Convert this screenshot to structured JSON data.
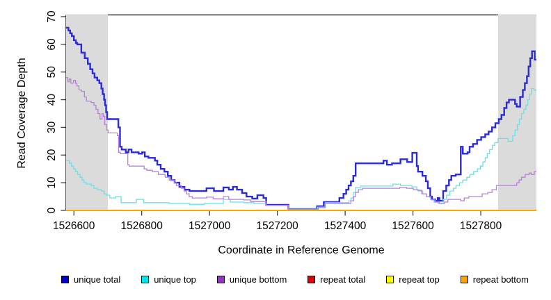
{
  "figure": {
    "x_axis_label": "Coordinate in Reference Genome",
    "y_axis_label": "Read Coverage Depth"
  },
  "chart_data": {
    "type": "line",
    "subtype": "step-coverage-plot",
    "title": "",
    "xlabel": "Coordinate in Reference Genome",
    "ylabel": "Read Coverage Depth",
    "xlim": [
      1526577,
      1527964
    ],
    "ylim": [
      0,
      70.5
    ],
    "x_ticks": [
      1526600,
      1526800,
      1527000,
      1527200,
      1527400,
      1527600,
      1527800
    ],
    "y_ticks": [
      0,
      10,
      20,
      30,
      40,
      50,
      60,
      70
    ],
    "grid": false,
    "legend_position": "bottom",
    "frame_color": "#000000",
    "tick_color": "#404040",
    "background_color": "#ffffff",
    "highlight_regions": [
      {
        "name": "left-repeat-shade",
        "from": 1526577,
        "to": 1526700,
        "color": "#DBDBDB"
      },
      {
        "name": "right-repeat-shade",
        "from": 1527851,
        "to": 1527964,
        "color": "#DBDBDB"
      }
    ],
    "series": [
      {
        "name": "unique total",
        "legend_color": "#0000CD",
        "line_color": "#2B2BD5",
        "line_width": 2.4,
        "points": [
          [
            1526577,
            66
          ],
          [
            1526584,
            65
          ],
          [
            1526589,
            64
          ],
          [
            1526594,
            63
          ],
          [
            1526600,
            61.5
          ],
          [
            1526606,
            60.5
          ],
          [
            1526610,
            60
          ],
          [
            1526622,
            57
          ],
          [
            1526632,
            55
          ],
          [
            1526641,
            53
          ],
          [
            1526648,
            51
          ],
          [
            1526655,
            49.5
          ],
          [
            1526661,
            48
          ],
          [
            1526669,
            47
          ],
          [
            1526675,
            46
          ],
          [
            1526681,
            44
          ],
          [
            1526685,
            42
          ],
          [
            1526689,
            40
          ],
          [
            1526692,
            38
          ],
          [
            1526695,
            35.5
          ],
          [
            1526698,
            33
          ],
          [
            1526731,
            30
          ],
          [
            1526736,
            23
          ],
          [
            1526741,
            22
          ],
          [
            1526753,
            21
          ],
          [
            1526761,
            22
          ],
          [
            1526770,
            21
          ],
          [
            1526791,
            20.5
          ],
          [
            1526801,
            21
          ],
          [
            1526809,
            19.5
          ],
          [
            1526820,
            19
          ],
          [
            1526839,
            18
          ],
          [
            1526846,
            16.5
          ],
          [
            1526856,
            15
          ],
          [
            1526867,
            14
          ],
          [
            1526877,
            12.5
          ],
          [
            1526887,
            11
          ],
          [
            1526897,
            10
          ],
          [
            1526911,
            8.5
          ],
          [
            1526926,
            7.5
          ],
          [
            1526941,
            7
          ],
          [
            1526991,
            8
          ],
          [
            1527013,
            7
          ],
          [
            1527041,
            8.3
          ],
          [
            1527057,
            7.5
          ],
          [
            1527069,
            8.5
          ],
          [
            1527081,
            7.5
          ],
          [
            1527096,
            6.3
          ],
          [
            1527109,
            5
          ],
          [
            1527126,
            4.3
          ],
          [
            1527141,
            5.5
          ],
          [
            1527159,
            4.5
          ],
          [
            1527167,
            2
          ],
          [
            1527233,
            0.5
          ],
          [
            1527317,
            1.5
          ],
          [
            1527337,
            3
          ],
          [
            1527383,
            4.5
          ],
          [
            1527395,
            6
          ],
          [
            1527403,
            7.5
          ],
          [
            1527410,
            9
          ],
          [
            1527417,
            10.5
          ],
          [
            1527424,
            12.5
          ],
          [
            1527431,
            17
          ],
          [
            1527513,
            18
          ],
          [
            1527523,
            16.5
          ],
          [
            1527538,
            17
          ],
          [
            1527563,
            18.5
          ],
          [
            1527583,
            17.5
          ],
          [
            1527598,
            20.8
          ],
          [
            1527611,
            16
          ],
          [
            1527615,
            14
          ],
          [
            1527628,
            12.5
          ],
          [
            1527638,
            10.5
          ],
          [
            1527644,
            8
          ],
          [
            1527651,
            5
          ],
          [
            1527656,
            4
          ],
          [
            1527666,
            3.5
          ],
          [
            1527673,
            4.5
          ],
          [
            1527678,
            3.5
          ],
          [
            1527689,
            7
          ],
          [
            1527698,
            9
          ],
          [
            1527706,
            11
          ],
          [
            1527713,
            12.5
          ],
          [
            1527726,
            13
          ],
          [
            1527741,
            23
          ],
          [
            1527747,
            20.5
          ],
          [
            1527761,
            21
          ],
          [
            1527767,
            23
          ],
          [
            1527777,
            24
          ],
          [
            1527789,
            25.5
          ],
          [
            1527801,
            26.5
          ],
          [
            1527813,
            27.5
          ],
          [
            1527823,
            28.5
          ],
          [
            1527833,
            30
          ],
          [
            1527843,
            31.5
          ],
          [
            1527853,
            33
          ],
          [
            1527861,
            34.5
          ],
          [
            1527869,
            37
          ],
          [
            1527876,
            39
          ],
          [
            1527883,
            40
          ],
          [
            1527901,
            38.5
          ],
          [
            1527906,
            37.5
          ],
          [
            1527916,
            41
          ],
          [
            1527924,
            43.5
          ],
          [
            1527930,
            46
          ],
          [
            1527936,
            48.5
          ],
          [
            1527941,
            52
          ],
          [
            1527946,
            55
          ],
          [
            1527951,
            57.5
          ],
          [
            1527959,
            54.5
          ]
        ]
      },
      {
        "name": "unique top",
        "legend_color": "#00E5EE",
        "line_color": "#5FE5EC",
        "line_width": 1.3,
        "points": [
          [
            1526577,
            18
          ],
          [
            1526587,
            17
          ],
          [
            1526593,
            16
          ],
          [
            1526599,
            15
          ],
          [
            1526605,
            14
          ],
          [
            1526611,
            13
          ],
          [
            1526618,
            12
          ],
          [
            1526624,
            11
          ],
          [
            1526630,
            10
          ],
          [
            1526637,
            9.5
          ],
          [
            1526651,
            9
          ],
          [
            1526659,
            8
          ],
          [
            1526669,
            7.5
          ],
          [
            1526681,
            7
          ],
          [
            1526689,
            6
          ],
          [
            1526695,
            5.5
          ],
          [
            1526706,
            4.5
          ],
          [
            1526723,
            5
          ],
          [
            1526739,
            2.8
          ],
          [
            1526784,
            4
          ],
          [
            1526806,
            2.8
          ],
          [
            1526881,
            2.5
          ],
          [
            1526941,
            2.2
          ],
          [
            1526985,
            2.5
          ],
          [
            1527041,
            4
          ],
          [
            1527061,
            3
          ],
          [
            1527101,
            2.8
          ],
          [
            1527131,
            2.5
          ],
          [
            1527167,
            1.8
          ],
          [
            1527233,
            0.5
          ],
          [
            1527319,
            1.2
          ],
          [
            1527341,
            2.8
          ],
          [
            1527411,
            3.5
          ],
          [
            1527417,
            4.5
          ],
          [
            1527424,
            6.5
          ],
          [
            1527431,
            8.3
          ],
          [
            1527446,
            8.8
          ],
          [
            1527541,
            9.5
          ],
          [
            1527563,
            9
          ],
          [
            1527597,
            8.5
          ],
          [
            1527611,
            7.5
          ],
          [
            1527615,
            7
          ],
          [
            1527629,
            6
          ],
          [
            1527640,
            5
          ],
          [
            1527652,
            4
          ],
          [
            1527662,
            3
          ],
          [
            1527674,
            2.5
          ],
          [
            1527689,
            4
          ],
          [
            1527699,
            5.5
          ],
          [
            1527709,
            7
          ],
          [
            1527719,
            8
          ],
          [
            1527727,
            9
          ],
          [
            1527737,
            10
          ],
          [
            1527747,
            11
          ],
          [
            1527759,
            12
          ],
          [
            1527768,
            13
          ],
          [
            1527779,
            14
          ],
          [
            1527790,
            15
          ],
          [
            1527799,
            16
          ],
          [
            1527806,
            17.5
          ],
          [
            1527813,
            19
          ],
          [
            1527819,
            20.5
          ],
          [
            1527826,
            22
          ],
          [
            1527834,
            23.5
          ],
          [
            1527841,
            24.5
          ],
          [
            1527851,
            26
          ],
          [
            1527881,
            25
          ],
          [
            1527894,
            27
          ],
          [
            1527901,
            29
          ],
          [
            1527908,
            31
          ],
          [
            1527914,
            33
          ],
          [
            1527920,
            35
          ],
          [
            1527927,
            36.5
          ],
          [
            1527933,
            38
          ],
          [
            1527939,
            40
          ],
          [
            1527944,
            42
          ],
          [
            1527949,
            44
          ],
          [
            1527957,
            43.5
          ]
        ]
      },
      {
        "name": "unique bottom",
        "legend_color": "#9932CC",
        "line_color": "#BB7CE4",
        "line_width": 1.3,
        "points": [
          [
            1526577,
            48
          ],
          [
            1526582,
            46.5
          ],
          [
            1526586,
            47.5
          ],
          [
            1526591,
            46
          ],
          [
            1526599,
            47
          ],
          [
            1526605,
            46
          ],
          [
            1526609,
            45
          ],
          [
            1526615,
            43.5
          ],
          [
            1526623,
            43
          ],
          [
            1526631,
            41
          ],
          [
            1526637,
            39.5
          ],
          [
            1526651,
            39
          ],
          [
            1526659,
            38
          ],
          [
            1526665,
            36.5
          ],
          [
            1526671,
            35
          ],
          [
            1526677,
            33
          ],
          [
            1526683,
            35
          ],
          [
            1526687,
            34
          ],
          [
            1526691,
            31
          ],
          [
            1526697,
            29
          ],
          [
            1526701,
            28
          ],
          [
            1526728,
            27
          ],
          [
            1526732,
            21
          ],
          [
            1526737,
            20.5
          ],
          [
            1526759,
            16.5
          ],
          [
            1526763,
            16
          ],
          [
            1526807,
            15
          ],
          [
            1526815,
            14.5
          ],
          [
            1526831,
            14
          ],
          [
            1526849,
            13
          ],
          [
            1526869,
            12
          ],
          [
            1526881,
            11
          ],
          [
            1526896,
            10
          ],
          [
            1526902,
            9
          ],
          [
            1526917,
            8
          ],
          [
            1526925,
            7
          ],
          [
            1526932,
            6
          ],
          [
            1526940,
            5
          ],
          [
            1526949,
            4.5
          ],
          [
            1526991,
            4.8
          ],
          [
            1527011,
            4.2
          ],
          [
            1527041,
            5
          ],
          [
            1527057,
            4
          ],
          [
            1527101,
            3.8
          ],
          [
            1527121,
            3.2
          ],
          [
            1527167,
            1.8
          ],
          [
            1527233,
            0.4
          ],
          [
            1527321,
            1
          ],
          [
            1527341,
            2.5
          ],
          [
            1527417,
            3.5
          ],
          [
            1527425,
            5
          ],
          [
            1527431,
            6.5
          ],
          [
            1527439,
            7.5
          ],
          [
            1527451,
            8
          ],
          [
            1527561,
            8.3
          ],
          [
            1527581,
            8
          ],
          [
            1527601,
            7.5
          ],
          [
            1527614,
            7.3
          ],
          [
            1527626,
            6
          ],
          [
            1527640,
            5
          ],
          [
            1527653,
            4
          ],
          [
            1527666,
            3
          ],
          [
            1527678,
            2.5
          ],
          [
            1527693,
            3
          ],
          [
            1527703,
            4
          ],
          [
            1527741,
            3.5
          ],
          [
            1527751,
            4.5
          ],
          [
            1527765,
            5
          ],
          [
            1527804,
            6
          ],
          [
            1527821,
            6.5
          ],
          [
            1527833,
            7.5
          ],
          [
            1527846,
            9
          ],
          [
            1527906,
            10
          ],
          [
            1527913,
            11
          ],
          [
            1527920,
            12
          ],
          [
            1527931,
            13
          ],
          [
            1527943,
            13.5
          ],
          [
            1527949,
            13
          ],
          [
            1527958,
            14
          ]
        ]
      },
      {
        "name": "repeat total",
        "legend_color": "#DF0000",
        "line_color": "#DF0000",
        "line_width": 1.3,
        "points": [
          [
            1526577,
            0
          ]
        ]
      },
      {
        "name": "repeat top",
        "legend_color": "#FFFF00",
        "line_color": "#FFFF00",
        "line_width": 1.3,
        "points": [
          [
            1526577,
            0
          ]
        ]
      },
      {
        "name": "repeat bottom",
        "legend_color": "#FFA500",
        "line_color": "#FFA500",
        "line_width": 2,
        "points": [
          [
            1526577,
            0
          ]
        ]
      }
    ]
  }
}
